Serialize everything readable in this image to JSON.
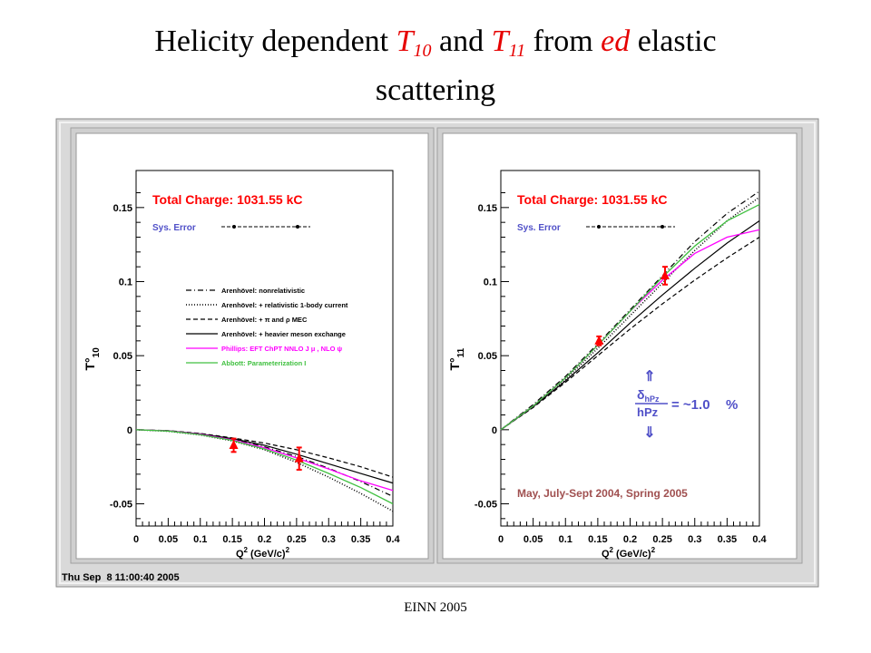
{
  "title": {
    "line1_a": "Helicity dependent ",
    "t10_T": "T",
    "t10_sub": "10",
    "and": " and ",
    "t11_T": "T",
    "t11_sub": "11",
    "from": " from ",
    "ed": "ed",
    "elastic": " elastic",
    "line2": "scattering"
  },
  "footer": "EINN 2005",
  "timestamp": "Thu Sep  8 11:00:40 2005",
  "colors": {
    "frame_bg": "#d9d9d9",
    "pad_bg": "#ffffff",
    "red": "#ff0000",
    "blue_label": "#5050c8",
    "magenta": "#ff00ff",
    "green": "#40c040",
    "brown_text": "#a05050"
  },
  "chart_data": [
    {
      "type": "line",
      "ylabel": "T°10",
      "ylabel_main": "T°",
      "ylabel_sub": "10",
      "xlabel_main": "Q",
      "xlabel_sup": "2",
      "xlabel_units": "(GeV/c)",
      "xlabel_units_sup": "2",
      "xlim": [
        0,
        0.4
      ],
      "ylim": [
        -0.065,
        0.175
      ],
      "x_ticks": [
        "0",
        "0.05",
        "0.1",
        "0.15",
        "0.2",
        "0.25",
        "0.3",
        "0.35",
        "0.4"
      ],
      "y_ticks": [
        "-0.05",
        "0",
        "0.05",
        "0.1",
        "0.15"
      ],
      "total_charge": "Total Charge: 1031.55 kC",
      "sys_error_label": "Sys. Error",
      "legend": [
        "Arenhövel: nonrelativistic",
        "Arenhövel: + relativistic 1-body current",
        "Arenhövel: + π and ρ MEC",
        "Arenhövel: + heavier meson exchange",
        "Phillips: EFT ChPT NNLO J μ , NLO ψ",
        "Abbott: Parameterization I"
      ],
      "series": [
        {
          "name": "Arenhövel: nonrelativistic",
          "x": [
            0,
            0.05,
            0.1,
            0.15,
            0.2,
            0.25,
            0.3,
            0.35,
            0.4
          ],
          "y": [
            0,
            -0.0008,
            -0.003,
            -0.0065,
            -0.0115,
            -0.018,
            -0.026,
            -0.035,
            -0.045
          ]
        },
        {
          "name": "Arenhövel: + relativistic 1-body current",
          "x": [
            0,
            0.05,
            0.1,
            0.15,
            0.2,
            0.25,
            0.3,
            0.35,
            0.4
          ],
          "y": [
            0,
            -0.001,
            -0.0035,
            -0.0075,
            -0.0135,
            -0.022,
            -0.032,
            -0.043,
            -0.055
          ]
        },
        {
          "name": "Arenhövel: + π and ρ MEC",
          "x": [
            0,
            0.05,
            0.1,
            0.15,
            0.2,
            0.25,
            0.3,
            0.35,
            0.4
          ],
          "y": [
            0,
            -0.0006,
            -0.0025,
            -0.0055,
            -0.009,
            -0.0135,
            -0.019,
            -0.025,
            -0.032
          ]
        },
        {
          "name": "Arenhövel: + heavier meson exchange",
          "x": [
            0,
            0.05,
            0.1,
            0.15,
            0.2,
            0.25,
            0.3,
            0.35,
            0.4
          ],
          "y": [
            0,
            -0.0007,
            -0.0028,
            -0.006,
            -0.0105,
            -0.0165,
            -0.023,
            -0.0295,
            -0.036
          ]
        },
        {
          "name": "Phillips: EFT ChPT NNLO J μ , NLO ψ",
          "x": [
            0,
            0.05,
            0.1,
            0.15,
            0.2,
            0.25,
            0.3,
            0.35,
            0.4
          ],
          "y": [
            0,
            -0.0008,
            -0.003,
            -0.0068,
            -0.0122,
            -0.019,
            -0.0265,
            -0.0345,
            -0.041
          ]
        },
        {
          "name": "Abbott: Parameterization I",
          "x": [
            0,
            0.05,
            0.1,
            0.15,
            0.2,
            0.25,
            0.3,
            0.35,
            0.4
          ],
          "y": [
            0,
            -0.0009,
            -0.0033,
            -0.0072,
            -0.013,
            -0.0205,
            -0.0295,
            -0.039,
            -0.05
          ]
        }
      ],
      "data_points": [
        {
          "x": 0.152,
          "y": -0.0105,
          "err": 0.0045
        },
        {
          "x": 0.254,
          "y": -0.0195,
          "err": 0.0075
        }
      ]
    },
    {
      "type": "line",
      "ylabel": "T°11",
      "ylabel_main": "T°",
      "ylabel_sub": "11",
      "xlabel_main": "Q",
      "xlabel_sup": "2",
      "xlabel_units": "(GeV/c)",
      "xlabel_units_sup": "2",
      "xlim": [
        0,
        0.4
      ],
      "ylim": [
        -0.065,
        0.175
      ],
      "x_ticks": [
        "0",
        "0.05",
        "0.1",
        "0.15",
        "0.2",
        "0.25",
        "0.3",
        "0.35",
        "0.4"
      ],
      "y_ticks": [
        "-0.05",
        "0",
        "0.05",
        "0.1",
        "0.15"
      ],
      "total_charge": "Total Charge: 1031.55 kC",
      "sys_error_label": "Sys. Error",
      "delta_numerator": "δ",
      "delta_sub": "hPz",
      "delta_denominator": "hPz",
      "delta_value": "= ~1.0",
      "delta_unit": "%",
      "date_text": "May, July-Sept 2004, Spring 2005",
      "series": [
        {
          "name": "Arenhövel: nonrelativistic",
          "x": [
            0,
            0.05,
            0.1,
            0.15,
            0.2,
            0.25,
            0.3,
            0.35,
            0.4
          ],
          "y": [
            0,
            0.017,
            0.036,
            0.058,
            0.081,
            0.104,
            0.127,
            0.146,
            0.161
          ]
        },
        {
          "name": "Arenhövel: + relativistic 1-body current",
          "x": [
            0,
            0.05,
            0.1,
            0.15,
            0.2,
            0.25,
            0.3,
            0.35,
            0.4
          ],
          "y": [
            0,
            0.016,
            0.034,
            0.055,
            0.077,
            0.099,
            0.121,
            0.141,
            0.157
          ]
        },
        {
          "name": "Arenhövel: + π and ρ MEC",
          "x": [
            0,
            0.05,
            0.1,
            0.15,
            0.2,
            0.25,
            0.3,
            0.35,
            0.4
          ],
          "y": [
            0,
            0.015,
            0.032,
            0.05,
            0.068,
            0.085,
            0.101,
            0.116,
            0.13
          ]
        },
        {
          "name": "Arenhövel: + heavier meson exchange",
          "x": [
            0,
            0.05,
            0.1,
            0.15,
            0.2,
            0.25,
            0.3,
            0.35,
            0.4
          ],
          "y": [
            0,
            0.0155,
            0.033,
            0.052,
            0.072,
            0.091,
            0.109,
            0.126,
            0.141
          ]
        },
        {
          "name": "Phillips: EFT ChPT NNLO J μ , NLO ψ",
          "x": [
            0,
            0.05,
            0.1,
            0.15,
            0.2,
            0.25,
            0.3,
            0.35,
            0.4
          ],
          "y": [
            0,
            0.016,
            0.035,
            0.057,
            0.08,
            0.101,
            0.119,
            0.13,
            0.135
          ]
        },
        {
          "name": "Abbott: Parameterization I",
          "x": [
            0,
            0.05,
            0.1,
            0.15,
            0.2,
            0.25,
            0.3,
            0.35,
            0.4
          ],
          "y": [
            0,
            0.016,
            0.035,
            0.057,
            0.08,
            0.103,
            0.124,
            0.141,
            0.152
          ]
        }
      ],
      "data_points": [
        {
          "x": 0.152,
          "y": 0.06,
          "err": 0.003
        },
        {
          "x": 0.254,
          "y": 0.104,
          "err": 0.006
        }
      ]
    }
  ]
}
